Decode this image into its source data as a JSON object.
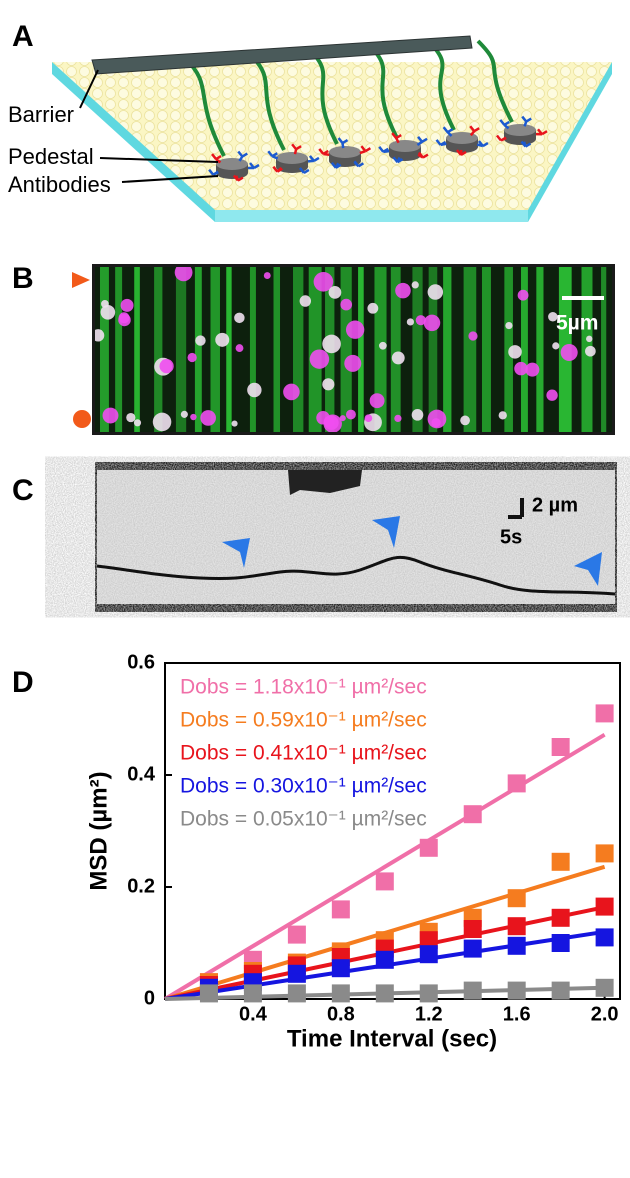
{
  "panel_a": {
    "label": "A",
    "barrier": "Barrier",
    "pedestal": "Pedestal",
    "antibodies": "Antibodies"
  },
  "panel_b": {
    "label": "B",
    "scale": "5µm"
  },
  "panel_c": {
    "label": "C",
    "scale_y": "2 µm",
    "scale_x": "5s"
  },
  "chart_data": {
    "type": "scatter",
    "panel_label": "D",
    "x_label": "Time Interval (sec)",
    "y_label": "MSD (µm²)",
    "x": [
      0.2,
      0.4,
      0.6,
      0.8,
      1.0,
      1.2,
      1.4,
      1.6,
      1.8,
      2.0
    ],
    "fit_x": [
      0,
      2.0
    ],
    "series": [
      {
        "name": "Dobs = 1.18x10⁻¹ µm²/sec",
        "color": "#f06fa8",
        "values": [
          0.03,
          0.07,
          0.115,
          0.16,
          0.21,
          0.27,
          0.33,
          0.385,
          0.45,
          0.51
        ],
        "fit_values": [
          0,
          0.472
        ]
      },
      {
        "name": "Dobs = 0.59x10⁻¹ µm²/sec",
        "color": "#f57c1f",
        "values": [
          0.03,
          0.05,
          0.065,
          0.085,
          0.105,
          0.12,
          0.145,
          0.18,
          0.245,
          0.26
        ],
        "fit_values": [
          0,
          0.236
        ]
      },
      {
        "name": "Dobs = 0.41x10⁻¹ µm²/sec",
        "color": "#e8141c",
        "values": [
          0.025,
          0.045,
          0.06,
          0.075,
          0.09,
          0.105,
          0.125,
          0.13,
          0.145,
          0.165
        ],
        "fit_values": [
          0,
          0.164
        ]
      },
      {
        "name": "Dobs = 0.30x10⁻¹ µm²/sec",
        "color": "#1515e0",
        "values": [
          0.02,
          0.03,
          0.045,
          0.055,
          0.07,
          0.08,
          0.09,
          0.095,
          0.1,
          0.11
        ],
        "fit_values": [
          0,
          0.12
        ]
      },
      {
        "name": "Dobs = 0.05x10⁻¹ µm²/sec",
        "color": "#8a8a8a",
        "values": [
          0.01,
          0.01,
          0.01,
          0.01,
          0.01,
          0.01,
          0.015,
          0.015,
          0.015,
          0.02
        ],
        "fit_values": [
          0,
          0.02
        ]
      }
    ],
    "xlim": [
      0,
      2.07
    ],
    "ylim": [
      0,
      0.6
    ],
    "xticks": [
      0.4,
      0.8,
      1.2,
      1.6,
      {
        "value": 2,
        "label": "2.0"
      }
    ],
    "yticks": [
      0,
      0.2,
      0.4,
      0.6
    ]
  }
}
